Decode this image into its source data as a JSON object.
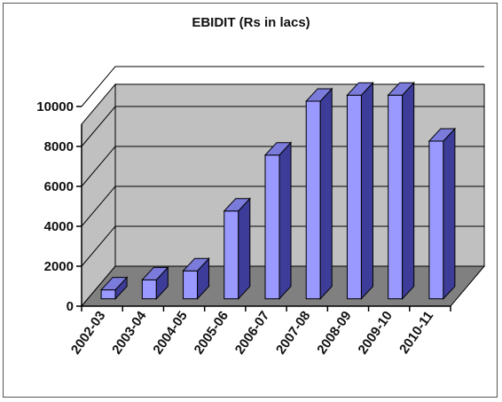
{
  "chart_data": {
    "type": "bar",
    "title": "EBIDIT (Rs in lacs)",
    "categories": [
      "2002-03",
      "2003-04",
      "2004-05",
      "2005-06",
      "2006-07",
      "2007-08",
      "2008-09",
      "2009-10",
      "2010-11"
    ],
    "series": [
      {
        "values": [
          450,
          950,
          1400,
          4400,
          7200,
          9900,
          10200,
          10200,
          7900
        ]
      }
    ],
    "ylim": [
      0,
      10000
    ],
    "yticks": [
      0,
      2000,
      4000,
      6000,
      8000,
      10000
    ],
    "grid": true,
    "legend": "none",
    "colors": {
      "bar_front": "#9999ff",
      "bar_side": "#3d3d99",
      "bar_top": "#7b7bdc",
      "wall": "#c0c0c0",
      "floor": "#808080",
      "gridline": "#000000"
    }
  }
}
